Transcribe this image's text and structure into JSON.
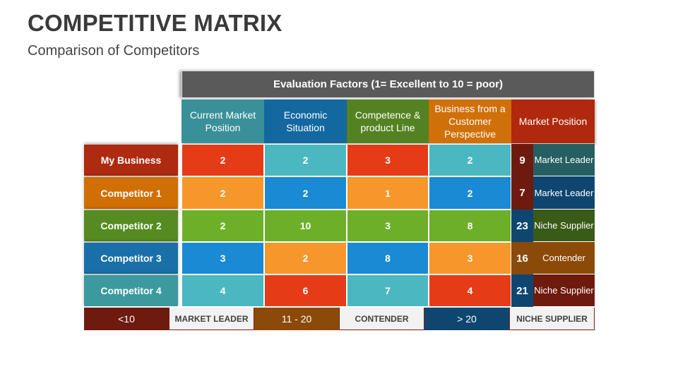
{
  "title": "COMPETITIVE MATRIX",
  "subtitle": "Comparison of Competitors",
  "evaluation_header": "Evaluation Factors (1= Excellent to 10 = poor)",
  "columns": [
    {
      "label": "Current Market Position",
      "color": "#3A9098"
    },
    {
      "label": "Economic Situation",
      "color": "#1468A0"
    },
    {
      "label": "Competence & product Line",
      "color": "#548222"
    },
    {
      "label": "Business from a Customer Perspective",
      "color": "#D07008"
    },
    {
      "label": "Market Position",
      "color": "#B0290F"
    }
  ],
  "rows": [
    {
      "name": "My Business",
      "color": "#AE2A10",
      "scores": [
        2,
        2,
        3,
        2
      ],
      "cell_colors": [
        "#E63B17",
        "#4BB7C1",
        "#E63B17",
        "#4BB7C1"
      ],
      "total": 9,
      "total_color": "#6E1A0E",
      "position": "Market Leader",
      "position_color": "#255F62"
    },
    {
      "name": "Competitor 1",
      "color": "#D06F06",
      "scores": [
        2,
        2,
        1,
        2
      ],
      "cell_colors": [
        "#F7962B",
        "#1A8AD4",
        "#F7962B",
        "#1A8AD4"
      ],
      "total": 7,
      "total_color": "#6E1A0E",
      "position": "Market Leader",
      "position_color": "#0F4670"
    },
    {
      "name": "Competitor 2",
      "color": "#558B21",
      "scores": [
        2,
        10,
        3,
        8
      ],
      "cell_colors": [
        "#6DAF28",
        "#6DAF28",
        "#6DAF28",
        "#6DAF28"
      ],
      "total": 23,
      "total_color": "#0F4670",
      "position": "Niche Supplier",
      "position_color": "#3A5A18"
    },
    {
      "name": "Competitor 3",
      "color": "#1A6FA8",
      "scores": [
        3,
        2,
        8,
        3
      ],
      "cell_colors": [
        "#1A8AD4",
        "#F7962B",
        "#1A8AD4",
        "#F7962B"
      ],
      "total": 16,
      "total_color": "#8A4A0C",
      "position": "Contender",
      "position_color": "#8B4A08"
    },
    {
      "name": "Competitor 4",
      "color": "#3C9A9E",
      "scores": [
        4,
        6,
        7,
        4
      ],
      "cell_colors": [
        "#4BB7C1",
        "#E63B17",
        "#4BB7C1",
        "#E63B17"
      ],
      "total": 21,
      "total_color": "#0F4670",
      "position": "Niche Supplier",
      "position_color": "#6E1A0E"
    }
  ],
  "legend": [
    {
      "range": "<10",
      "color": "#6E1A0E",
      "label": "MARKET LEADER"
    },
    {
      "range": "11 - 20",
      "color": "#8B4A0A",
      "label": "CONTENDER"
    },
    {
      "range": "> 20",
      "color": "#0F4670",
      "label": "NICHE SUPPLIER"
    }
  ]
}
